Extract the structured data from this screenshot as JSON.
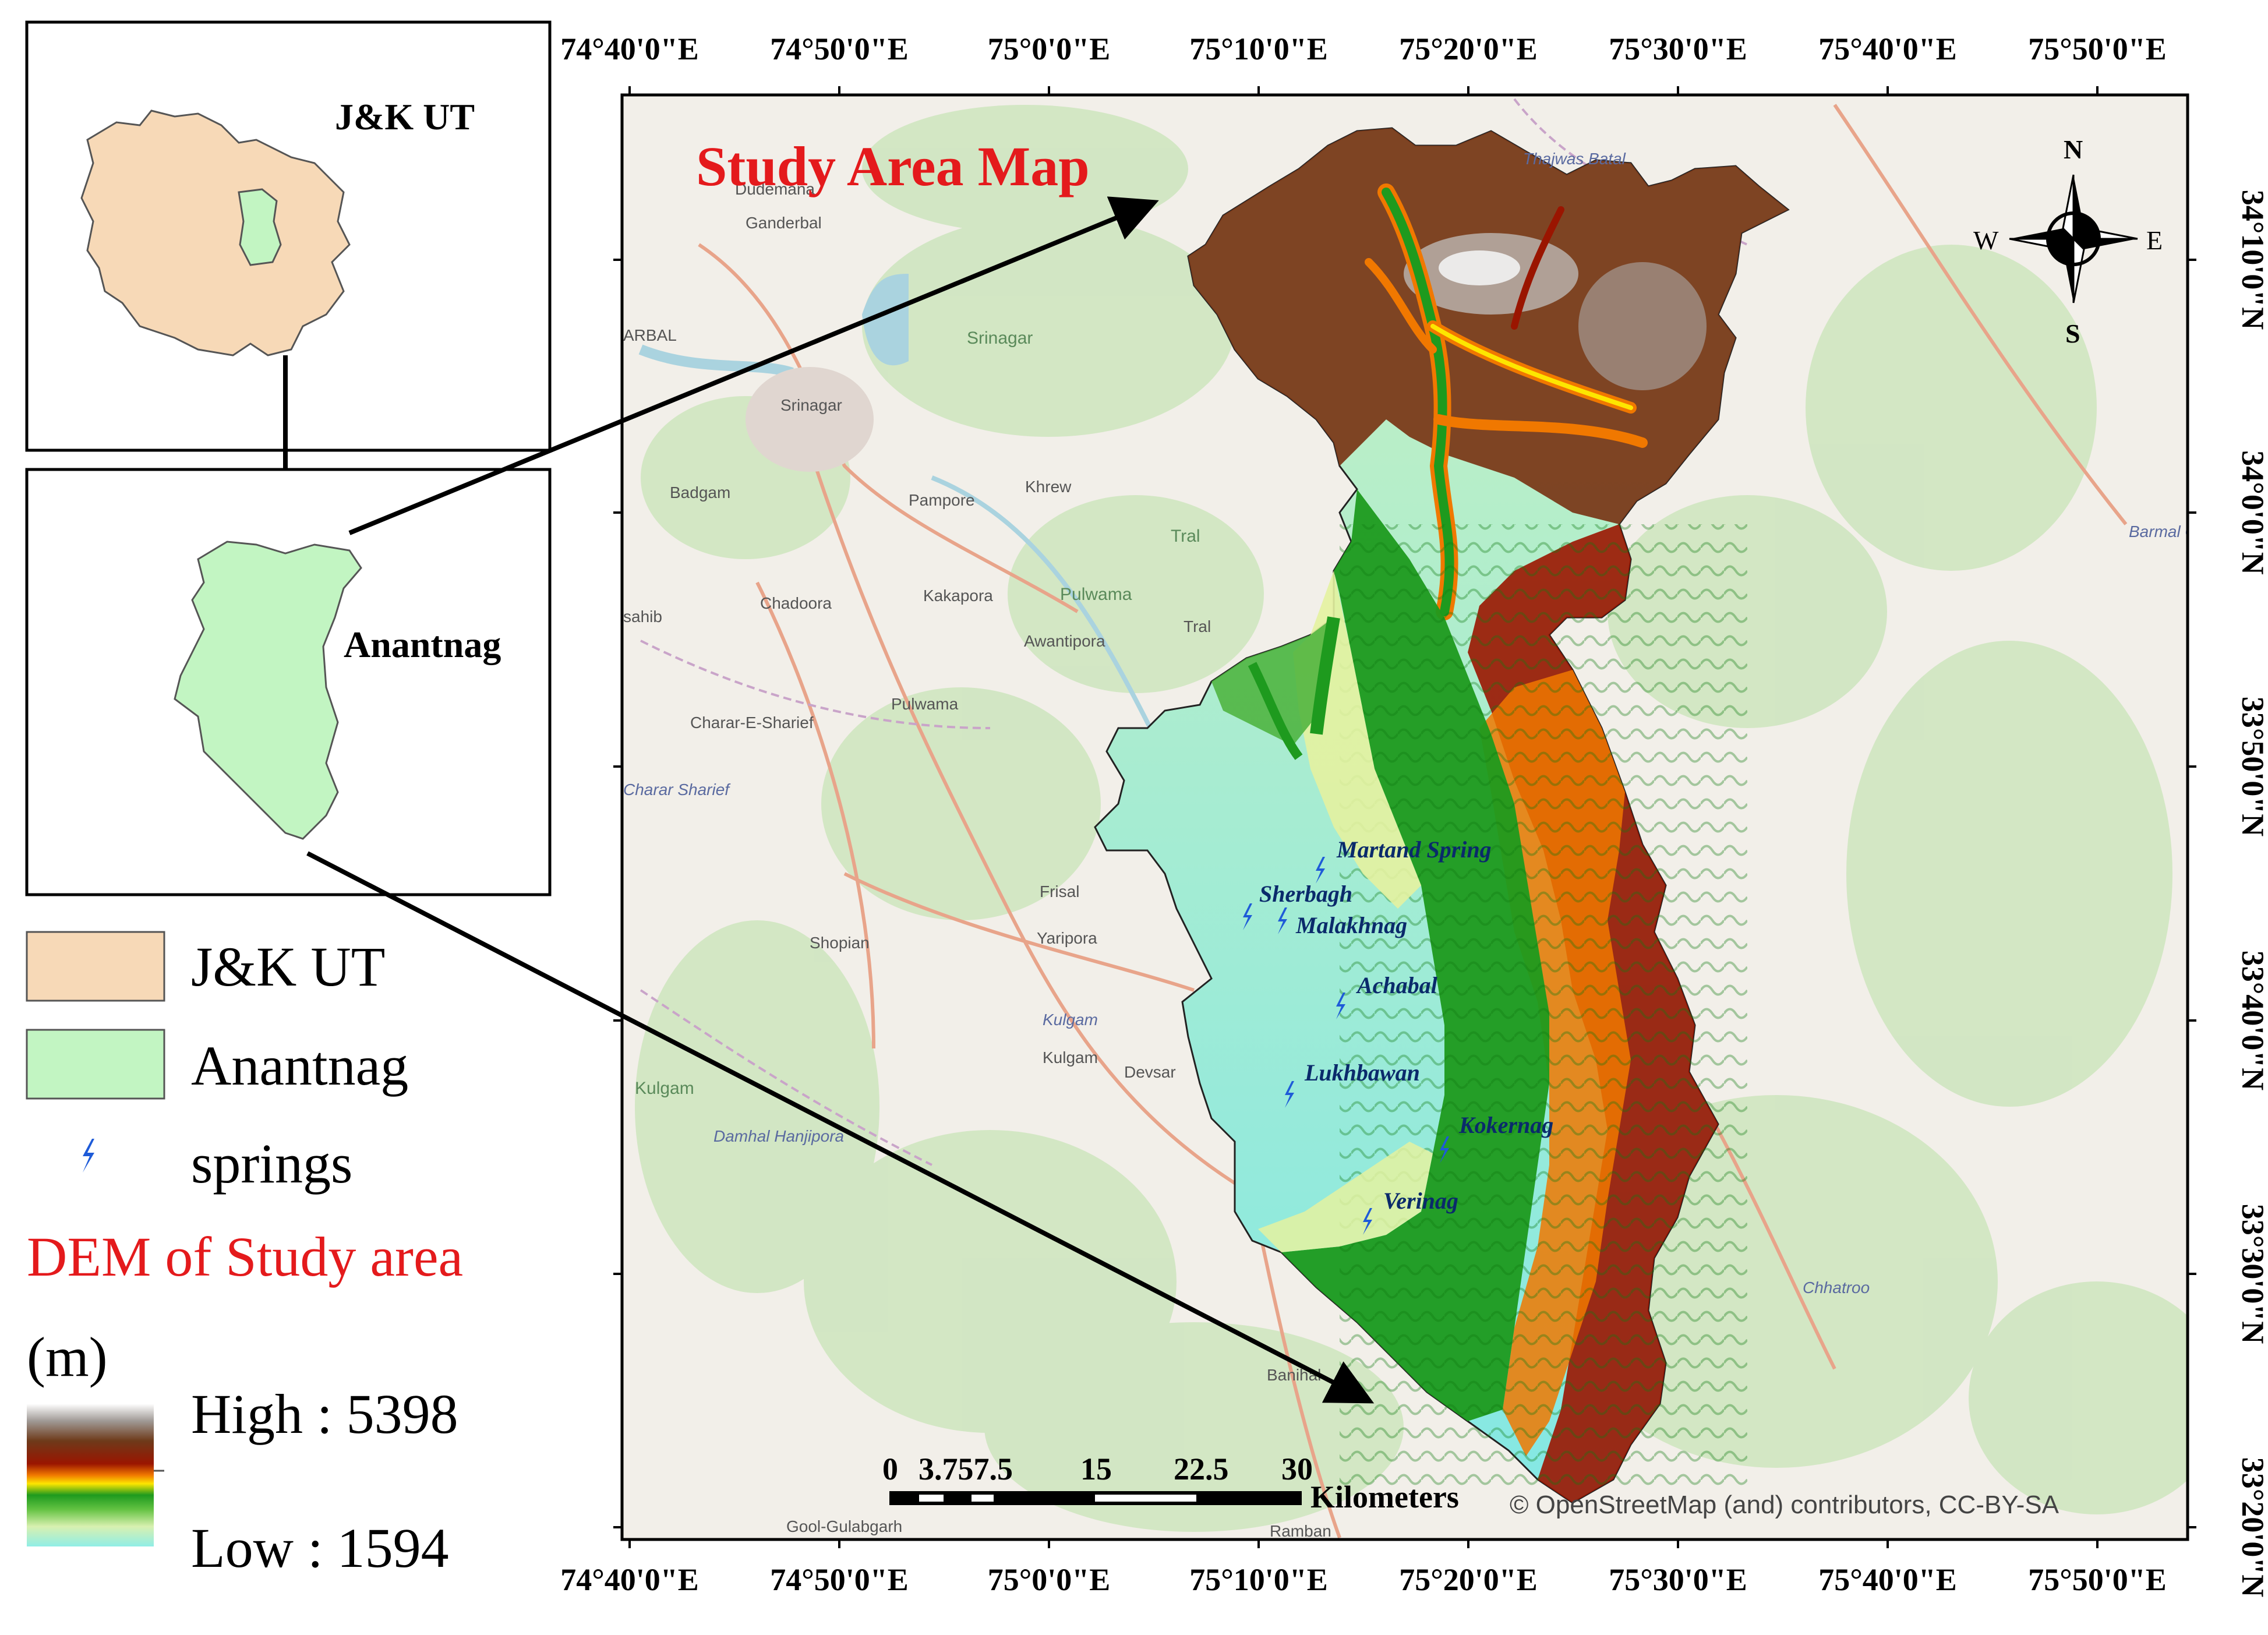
{
  "inset": {
    "jk_label": "J&K UT",
    "anantnag_label": "Anantnag"
  },
  "legend": {
    "items": [
      {
        "label": "J&K UT",
        "color": "#f7d9b7"
      },
      {
        "label": "Anantnag",
        "color": "#c2f5c2"
      },
      {
        "label": "springs",
        "icon": "spring-icon",
        "color": "#1e5bd8"
      }
    ],
    "dem_title": "DEM of Study area",
    "unit": "(m)",
    "high": "High : 5398",
    "low": "Low : 1594"
  },
  "map": {
    "title": "Study Area Map",
    "attribution": "© OpenStreetMap (and) contributors, CC-BY-SA",
    "x_ticks": [
      "74°40'0\"E",
      "74°50'0\"E",
      "75°0'0\"E",
      "75°10'0\"E",
      "75°20'0\"E",
      "75°30'0\"E",
      "75°40'0\"E",
      "75°50'0\"E"
    ],
    "y_ticks": [
      "34°10'0\"N",
      "34°0'0\"N",
      "33°50'0\"N",
      "33°40'0\"N",
      "33°30'0\"N",
      "33°20'0\"N"
    ],
    "north_arrow": {
      "n": "N",
      "s": "S",
      "e": "E",
      "w": "W"
    },
    "scale_bar": {
      "labels": [
        "0",
        "3.757.5",
        "15",
        "22.5",
        "30"
      ],
      "unit": "Kilometers"
    },
    "springs": [
      {
        "name": "Martand Spring"
      },
      {
        "name": "Sherbagh"
      },
      {
        "name": "Malakhnag"
      },
      {
        "name": "Achabal"
      },
      {
        "name": "Lukhbawan"
      },
      {
        "name": "Kokernag"
      },
      {
        "name": "Verinag"
      }
    ],
    "places": [
      "Dudemana",
      "Ganderbal",
      "Srinagar",
      "Srinagar",
      "Badgam",
      "Pampore",
      "Khrew",
      "Tral",
      "Chadoora",
      "Kakapora",
      "Pulwama",
      "Awantipora",
      "Tral",
      "Charar-E-Sharief",
      "Pulwama",
      "Frisal",
      "Shopian",
      "Yaripora",
      "Kulgam",
      "Kulgam",
      "Kulgam",
      "Devsar",
      "Damhal Hanjipora",
      "Banihal",
      "Chhatroo",
      "Barmal Glacier",
      "Thajwas Batal",
      "ARBAL",
      "sahib",
      "Charar Sharief",
      "Gool-Gulabgarh",
      "Ramban"
    ]
  }
}
